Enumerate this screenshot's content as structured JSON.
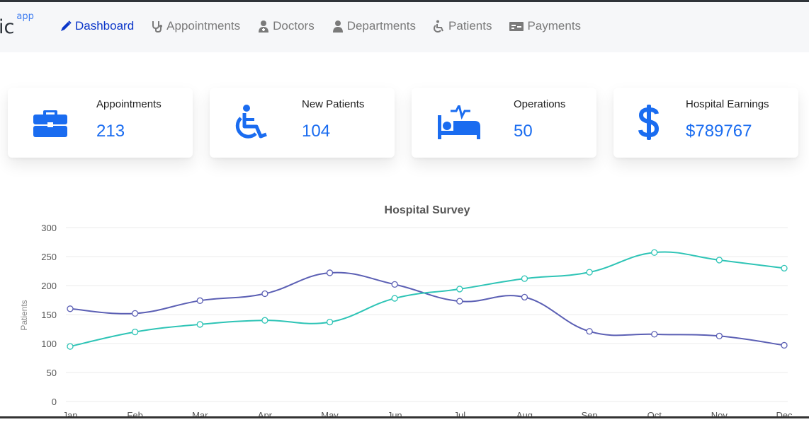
{
  "brand": {
    "text": "ic",
    "sup": "app"
  },
  "nav": [
    {
      "label": "Dashboard",
      "icon": "pen-icon",
      "active": true
    },
    {
      "label": "Appointments",
      "icon": "stethoscope-icon",
      "active": false
    },
    {
      "label": "Doctors",
      "icon": "doctor-icon",
      "active": false
    },
    {
      "label": "Departments",
      "icon": "user-icon",
      "active": false
    },
    {
      "label": "Patients",
      "icon": "wheelchair-icon",
      "active": false
    },
    {
      "label": "Payments",
      "icon": "payment-card-icon",
      "active": false
    }
  ],
  "stats": [
    {
      "label": "Appointments",
      "value": "213",
      "icon": "briefcase-icon"
    },
    {
      "label": "New Patients",
      "value": "104",
      "icon": "wheelchair-icon"
    },
    {
      "label": "Operations",
      "value": "50",
      "icon": "hospital-bed-icon"
    },
    {
      "label": "Hospital Earnings",
      "value": "$789767",
      "icon": "dollar-icon"
    }
  ],
  "colors": {
    "accent": "#1a6cf0",
    "nav_active": "#0b36c9",
    "series_a": "#5b5fb4",
    "series_b": "#2ec4b6"
  },
  "chart_data": {
    "type": "line",
    "title": "Hospital Survey",
    "ylabel": "Patients",
    "xlabel": "",
    "categories": [
      "Jan",
      "Feb",
      "Mar",
      "Apr",
      "May",
      "Jun",
      "Jul",
      "Aug",
      "Sep",
      "Oct",
      "Nov",
      "Dec"
    ],
    "yticks": [
      0,
      50,
      100,
      150,
      200,
      250,
      300
    ],
    "ylim": [
      0,
      300
    ],
    "grid": true,
    "series": [
      {
        "values": [
          160,
          152,
          174,
          186,
          222,
          202,
          173,
          180,
          121,
          116,
          113,
          97
        ],
        "color": "#5b5fb4"
      },
      {
        "values": [
          95,
          120,
          133,
          140,
          137,
          178,
          194,
          212,
          223,
          257,
          244,
          230
        ],
        "color": "#2ec4b6"
      }
    ]
  }
}
